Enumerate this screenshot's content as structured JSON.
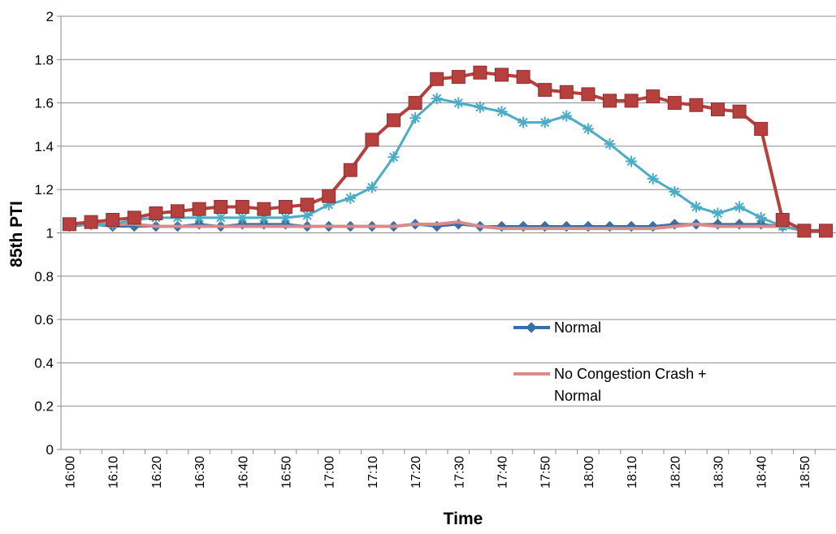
{
  "chart_data": {
    "type": "line",
    "xlabel": "Time",
    "ylabel": "85th PTI",
    "ylim": [
      0,
      2
    ],
    "yticks": [
      "0",
      "0.2",
      "0.4",
      "0.6",
      "0.8",
      "1",
      "1.2",
      "1.4",
      "1.6",
      "1.8",
      "2"
    ],
    "grid": "horizontal",
    "x": [
      "16:00",
      "16:05",
      "16:10",
      "16:15",
      "16:20",
      "16:25",
      "16:30",
      "16:35",
      "16:40",
      "16:45",
      "16:50",
      "16:55",
      "17:00",
      "17:05",
      "17:10",
      "17:15",
      "17:20",
      "17:25",
      "17:30",
      "17:35",
      "17:40",
      "17:45",
      "17:50",
      "17:55",
      "18:00",
      "18:05",
      "18:10",
      "18:15",
      "18:20",
      "18:25",
      "18:30",
      "18:35",
      "18:40",
      "18:45",
      "18:50",
      "18:55"
    ],
    "xtick_labels": [
      "16:00",
      "",
      "16:10",
      "",
      "16:20",
      "",
      "16:30",
      "",
      "16:40",
      "",
      "16:50",
      "",
      "17:00",
      "",
      "17:10",
      "",
      "17:20",
      "",
      "17:30",
      "",
      "17:40",
      "",
      "17:50",
      "",
      "18:00",
      "",
      "18:10",
      "",
      "18:20",
      "",
      "18:30",
      "",
      "18:40",
      "",
      "18:50",
      ""
    ],
    "series": [
      {
        "name": "Normal",
        "color": "#3A6EA5",
        "marker": "diamond",
        "values": [
          1.03,
          1.04,
          1.03,
          1.03,
          1.03,
          1.03,
          1.04,
          1.03,
          1.04,
          1.04,
          1.04,
          1.03,
          1.03,
          1.03,
          1.03,
          1.03,
          1.04,
          1.03,
          1.04,
          1.03,
          1.03,
          1.03,
          1.03,
          1.03,
          1.03,
          1.03,
          1.03,
          1.03,
          1.04,
          1.04,
          1.04,
          1.04,
          1.04,
          1.03,
          1.01,
          1.01
        ]
      },
      {
        "name": "No Congestion Crash + Normal",
        "color": "#D98B8B",
        "marker": "none",
        "values": [
          1.04,
          1.04,
          1.04,
          1.04,
          1.03,
          1.03,
          1.03,
          1.03,
          1.03,
          1.03,
          1.03,
          1.03,
          1.03,
          1.03,
          1.03,
          1.03,
          1.04,
          1.04,
          1.05,
          1.03,
          1.02,
          1.02,
          1.02,
          1.02,
          1.02,
          1.02,
          1.02,
          1.02,
          1.03,
          1.04,
          1.03,
          1.03,
          1.03,
          1.03,
          1.01,
          1.01
        ]
      },
      {
        "name": "",
        "color": "#4BACC6",
        "marker": "star",
        "values": [
          1.04,
          1.04,
          1.04,
          1.06,
          1.07,
          1.07,
          1.07,
          1.07,
          1.07,
          1.07,
          1.07,
          1.08,
          1.13,
          1.16,
          1.21,
          1.35,
          1.53,
          1.62,
          1.6,
          1.58,
          1.56,
          1.51,
          1.51,
          1.54,
          1.48,
          1.41,
          1.33,
          1.25,
          1.19,
          1.12,
          1.09,
          1.12,
          1.07,
          1.03,
          1.01,
          1.01
        ]
      },
      {
        "name": "",
        "color": "#B5403E",
        "marker": "square",
        "values": [
          1.04,
          1.05,
          1.06,
          1.07,
          1.09,
          1.1,
          1.11,
          1.12,
          1.12,
          1.11,
          1.12,
          1.13,
          1.17,
          1.29,
          1.43,
          1.52,
          1.6,
          1.71,
          1.72,
          1.74,
          1.73,
          1.72,
          1.66,
          1.65,
          1.64,
          1.61,
          1.61,
          1.63,
          1.6,
          1.59,
          1.57,
          1.56,
          1.48,
          1.06,
          1.01,
          1.01
        ]
      }
    ],
    "legend": {
      "placement": "center-right, inside plot",
      "entries": [
        {
          "series": 0,
          "text_lines": [
            "Normal"
          ]
        },
        {
          "series": 1,
          "text_lines": [
            "No Congestion Crash +",
            "Normal"
          ]
        }
      ]
    }
  }
}
